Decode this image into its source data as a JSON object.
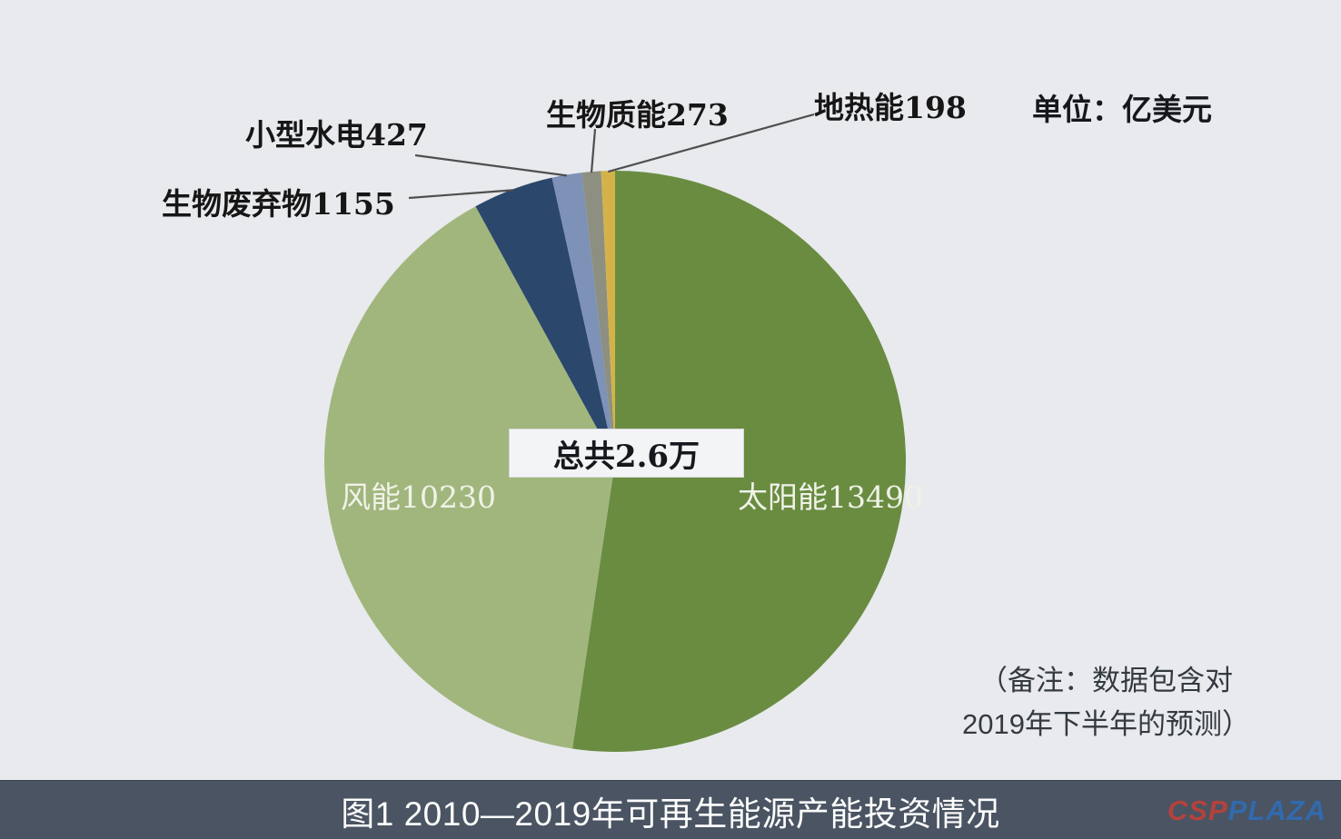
{
  "unit_label": "单位：亿美元",
  "note": {
    "line1": "（备注：数据包含对",
    "line2": "2019年下半年的预测）"
  },
  "caption": {
    "title": "图1 2010—2019年可再生能源产能投资情况",
    "logo_csp": "CSP",
    "logo_plaza": "PLAZA"
  },
  "chart_data": {
    "type": "pie",
    "title": "图1 2010—2019年可再生能源产能投资情况",
    "unit": "亿美元",
    "total_label": "总共2.6万",
    "total_value": 26000,
    "start_angle_deg": 0,
    "direction": "clockwise",
    "legend": "none",
    "slices": [
      {
        "name": "太阳能",
        "value": 13490,
        "display": "太阳能13490",
        "color": "#698c41",
        "label_placement": "inside"
      },
      {
        "name": "风能",
        "value": 10230,
        "display": "风能10230",
        "color": "#a1b67d",
        "label_placement": "inside"
      },
      {
        "name": "生物废弃物",
        "value": 1155,
        "display": "生物废弃物1155",
        "color": "#2b476c",
        "label_placement": "outside"
      },
      {
        "name": "小型水电",
        "value": 427,
        "display": "小型水电427",
        "color": "#7e91b6",
        "label_placement": "outside"
      },
      {
        "name": "生物质能",
        "value": 273,
        "display": "生物质能273",
        "color": "#8d8f80",
        "label_placement": "outside"
      },
      {
        "name": "地热能",
        "value": 198,
        "display": "地热能198",
        "color": "#d3b349",
        "label_placement": "outside"
      }
    ]
  },
  "colors": {
    "background": "#e8eaed",
    "caption_bar": "#4a5462",
    "leader_line": "#4f4f4f",
    "inside_label": "#f0f2e8",
    "outside_label": "#161616",
    "center_box_bg": "#f3f4f5",
    "logo_csp": "#b4423c",
    "logo_plaza": "#2f6db7"
  }
}
